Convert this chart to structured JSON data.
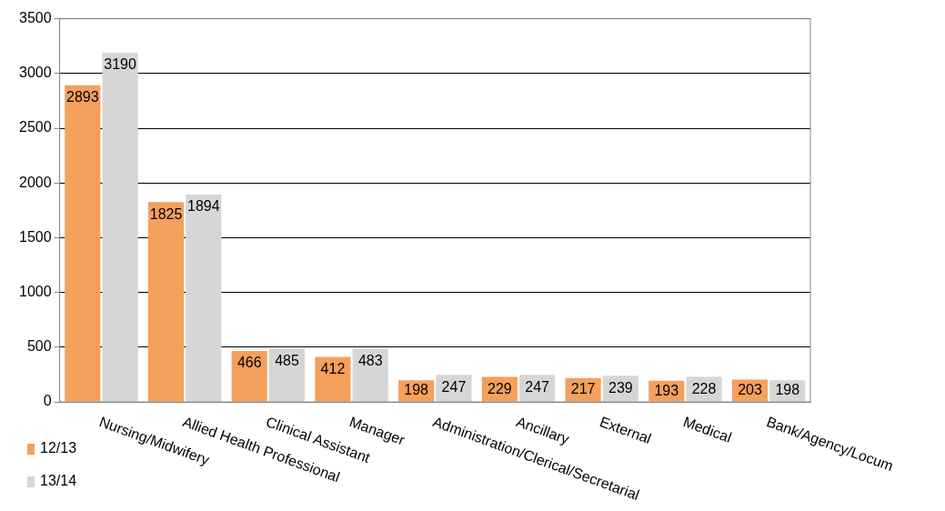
{
  "chart_data": {
    "type": "bar",
    "categories": [
      "Nursing/Midwifery",
      "Allied Health Professional",
      "Clinical Assistant",
      "Manager",
      "Administration/Clerical/Secretarial",
      "Ancillary",
      "External",
      "Medical",
      "Bank/Agency/Locum"
    ],
    "series": [
      {
        "name": "12/13",
        "color": "#f5a05c",
        "values": [
          2893,
          1825,
          466,
          412,
          198,
          229,
          217,
          193,
          203
        ]
      },
      {
        "name": "13/14",
        "color": "#d6d6d6",
        "values": [
          3190,
          1894,
          485,
          483,
          247,
          247,
          239,
          228,
          198
        ]
      }
    ],
    "ylim": [
      0,
      3500
    ],
    "yticks": [
      0,
      500,
      1000,
      1500,
      2000,
      2500,
      3000,
      3500
    ],
    "grid": "y",
    "legend": "bottom left",
    "data_labels": true
  }
}
